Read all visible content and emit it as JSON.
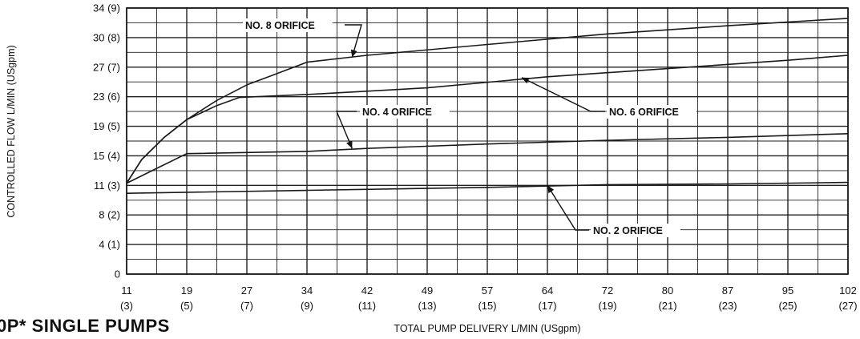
{
  "chart_data": {
    "type": "line",
    "title": "",
    "xlabel": "TOTAL PUMP DELIVERY L/MIN (USgpm)",
    "ylabel": "CONTROLLED FLOW  L/MIN (USgpm)",
    "x_ticks": [
      {
        "value": 11,
        "label": "11",
        "sub": "(3)"
      },
      {
        "value": 19,
        "label": "19",
        "sub": "(5)"
      },
      {
        "value": 27,
        "label": "27",
        "sub": "(7)"
      },
      {
        "value": 34,
        "label": "34",
        "sub": "(9)"
      },
      {
        "value": 42,
        "label": "42",
        "sub": "(11)"
      },
      {
        "value": 49,
        "label": "49",
        "sub": "(13)"
      },
      {
        "value": 57,
        "label": "57",
        "sub": "(15)"
      },
      {
        "value": 64,
        "label": "64",
        "sub": "(17)"
      },
      {
        "value": 72,
        "label": "72",
        "sub": "(19)"
      },
      {
        "value": 80,
        "label": "80",
        "sub": "(21)"
      },
      {
        "value": 87,
        "label": "87",
        "sub": "(23)"
      },
      {
        "value": 95,
        "label": "95",
        "sub": "(25)"
      },
      {
        "value": 102,
        "label": "102",
        "sub": "(27)"
      }
    ],
    "y_ticks": [
      {
        "value": 0,
        "label": "0"
      },
      {
        "value": 4,
        "label": "4 (1)"
      },
      {
        "value": 8,
        "label": "8 (2)"
      },
      {
        "value": 11,
        "label": "11 (3)"
      },
      {
        "value": 15,
        "label": "15 (4)"
      },
      {
        "value": 19,
        "label": "19 (5)"
      },
      {
        "value": 23,
        "label": "23 (6)"
      },
      {
        "value": 27,
        "label": "27 (7)"
      },
      {
        "value": 30,
        "label": "30 (8)"
      },
      {
        "value": 34,
        "label": "34 (9)"
      }
    ],
    "series": [
      {
        "name": "NO. 8 ORIFICE",
        "points": [
          [
            11,
            11.3
          ],
          [
            13,
            14.5
          ],
          [
            16,
            17.5
          ],
          [
            19,
            19.9
          ],
          [
            23,
            22.5
          ],
          [
            27,
            24.6
          ],
          [
            30,
            25.9
          ],
          [
            34,
            27.5
          ],
          [
            42,
            28.2
          ],
          [
            57,
            29.3
          ],
          [
            72,
            30.5
          ],
          [
            87,
            31.6
          ],
          [
            102,
            32.6
          ]
        ]
      },
      {
        "name": "NO. 6 ORIFICE",
        "points": [
          [
            11,
            11.3
          ],
          [
            13,
            14.5
          ],
          [
            16,
            17.5
          ],
          [
            19,
            19.9
          ],
          [
            23,
            21.8
          ],
          [
            26,
            22.9
          ],
          [
            34,
            23.3
          ],
          [
            49,
            24.2
          ],
          [
            64,
            25.7
          ],
          [
            80,
            26.8
          ],
          [
            95,
            27.7
          ],
          [
            102,
            28.2
          ]
        ]
      },
      {
        "name": "NO. 4 ORIFICE",
        "points": [
          [
            11,
            11.3
          ],
          [
            15,
            13.3
          ],
          [
            19,
            15.3
          ],
          [
            34,
            15.6
          ],
          [
            42,
            16.0
          ],
          [
            57,
            16.6
          ],
          [
            72,
            17.1
          ],
          [
            87,
            17.5
          ],
          [
            102,
            18.0
          ]
        ]
      },
      {
        "name": "NO. 2 ORIFICE",
        "points": [
          [
            11,
            10.2
          ],
          [
            34,
            10.5
          ],
          [
            57,
            10.8
          ],
          [
            72,
            11.1
          ],
          [
            87,
            11.2
          ],
          [
            102,
            11.4
          ]
        ]
      }
    ],
    "annotations": [
      {
        "text": "NO. 8 ORIFICE",
        "series": 0,
        "target": [
          40,
          28.0
        ]
      },
      {
        "text": "NO. 6 ORIFICE",
        "series": 1,
        "target": [
          61,
          25.6
        ]
      },
      {
        "text": "NO. 4 ORIFICE",
        "series": 2,
        "target": [
          40,
          16.0
        ]
      },
      {
        "text": "NO. 2 ORIFICE",
        "series": 3,
        "target": [
          64,
          11.0
        ]
      }
    ],
    "grid": true,
    "legend": "none"
  },
  "heading": "0P* SINGLE PUMPS"
}
